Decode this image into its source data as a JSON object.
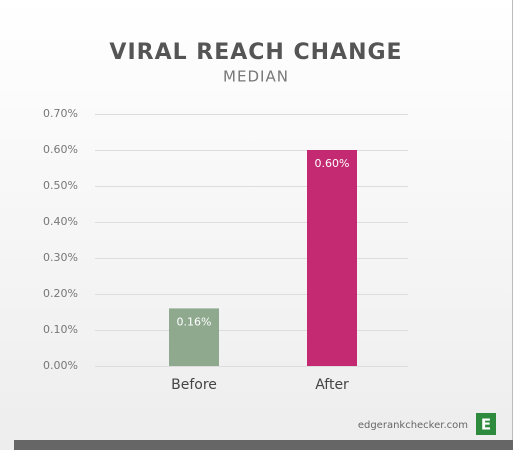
{
  "chart_data": {
    "type": "bar",
    "title": "VIRAL REACH CHANGE",
    "subtitle": "MEDIAN",
    "categories": [
      "Before",
      "After"
    ],
    "values": [
      0.16,
      0.6
    ],
    "value_labels": [
      "0.16%",
      "0.60%"
    ],
    "colors": [
      "#8fa98f",
      "#c32a71"
    ],
    "ylim": [
      0,
      0.7
    ],
    "yticks": [
      {
        "value": 0,
        "label": "0.00%"
      },
      {
        "value": 0.1,
        "label": "0.10%"
      },
      {
        "value": 0.2,
        "label": "0.20%"
      },
      {
        "value": 0.3,
        "label": "0.30%"
      },
      {
        "value": 0.4,
        "label": "0.40%"
      },
      {
        "value": 0.5,
        "label": "0.50%"
      },
      {
        "value": 0.6,
        "label": "0.60%"
      },
      {
        "value": 0.7,
        "label": "0.70%"
      }
    ],
    "grid": true,
    "source": "edgerankchecker.com",
    "logo": "E"
  }
}
